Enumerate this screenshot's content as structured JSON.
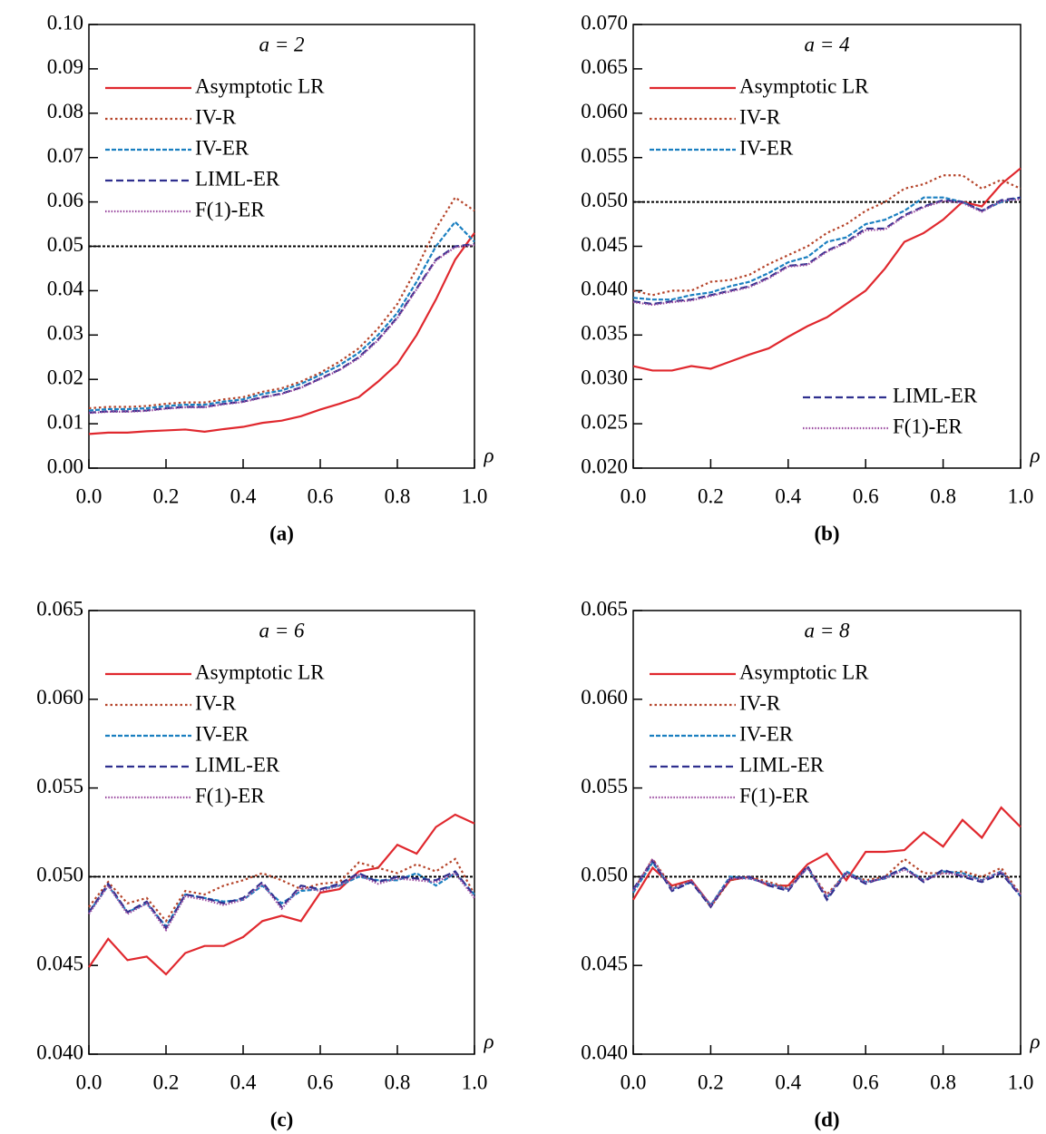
{
  "chart_data": [
    {
      "type": "line",
      "subtitle": "a = 2",
      "caption": "(a)",
      "xlabel": "ρ",
      "x": [
        0,
        0.05,
        0.1,
        0.15,
        0.2,
        0.25,
        0.3,
        0.35,
        0.4,
        0.45,
        0.5,
        0.55,
        0.6,
        0.65,
        0.7,
        0.75,
        0.8,
        0.85,
        0.9,
        0.95,
        1
      ],
      "xlim": [
        0,
        1
      ],
      "xticks": [
        {
          "value": 0,
          "label": "0.0"
        },
        0.2,
        0.4,
        0.6,
        0.8,
        {
          "value": 1,
          "label": "1.0"
        }
      ],
      "ylim": [
        0,
        0.1
      ],
      "yticks": [
        {
          "value": 0,
          "label": "0.00"
        },
        0.01,
        0.02,
        0.03,
        0.04,
        0.05,
        0.06,
        0.07,
        0.08,
        0.09,
        {
          "value": 0.1,
          "label": "0.10"
        }
      ],
      "reference_line": 0.05,
      "series": [
        {
          "name": "Asymptotic LR",
          "color": "#e0282e",
          "style": "solid",
          "legend": "upper left",
          "values": [
            0.0077,
            0.008,
            0.008,
            0.0083,
            0.0085,
            0.0087,
            0.0082,
            0.0088,
            0.0093,
            0.0102,
            0.0107,
            0.0117,
            0.0132,
            0.0145,
            0.016,
            0.0195,
            0.0235,
            0.03,
            0.038,
            0.047,
            0.053
          ]
        },
        {
          "name": "IV-R",
          "color": "#b5442a",
          "style": "dotted",
          "legend": "upper left",
          "values": [
            0.0135,
            0.0138,
            0.0138,
            0.014,
            0.0145,
            0.0148,
            0.0148,
            0.0155,
            0.016,
            0.0172,
            0.018,
            0.0195,
            0.0215,
            0.024,
            0.027,
            0.0315,
            0.037,
            0.045,
            0.054,
            0.061,
            0.058
          ]
        },
        {
          "name": "IV-ER",
          "color": "#1a7fc0",
          "style": "densely-dashed",
          "legend": "upper left",
          "values": [
            0.013,
            0.0133,
            0.0133,
            0.0135,
            0.014,
            0.0143,
            0.0143,
            0.015,
            0.0155,
            0.0167,
            0.0175,
            0.019,
            0.021,
            0.0232,
            0.026,
            0.03,
            0.035,
            0.042,
            0.05,
            0.0555,
            0.051
          ]
        },
        {
          "name": "LIML-ER",
          "color": "#2e2f8e",
          "style": "dashed",
          "legend": "upper left",
          "values": [
            0.0125,
            0.0128,
            0.0128,
            0.013,
            0.0135,
            0.0138,
            0.0138,
            0.0145,
            0.015,
            0.016,
            0.0168,
            0.0182,
            0.0202,
            0.0222,
            0.025,
            0.029,
            0.034,
            0.0405,
            0.047,
            0.05,
            0.0505
          ]
        },
        {
          "name": "F(1)-ER",
          "color": "#9b4ba0",
          "style": "fine-dotted",
          "legend": "upper left",
          "values": [
            0.0124,
            0.0127,
            0.0127,
            0.0129,
            0.0134,
            0.0137,
            0.0137,
            0.0144,
            0.0149,
            0.0159,
            0.0167,
            0.0181,
            0.0201,
            0.0221,
            0.0248,
            0.0288,
            0.0338,
            0.0403,
            0.0468,
            0.0498,
            0.0503
          ]
        }
      ]
    },
    {
      "type": "line",
      "subtitle": "a = 4",
      "caption": "(b)",
      "xlabel": "ρ",
      "x": [
        0,
        0.05,
        0.1,
        0.15,
        0.2,
        0.25,
        0.3,
        0.35,
        0.4,
        0.45,
        0.5,
        0.55,
        0.6,
        0.65,
        0.7,
        0.75,
        0.8,
        0.85,
        0.9,
        0.95,
        1
      ],
      "xlim": [
        0,
        1
      ],
      "xticks": [
        {
          "value": 0,
          "label": "0.0"
        },
        0.2,
        0.4,
        0.6,
        0.8,
        {
          "value": 1,
          "label": "1.0"
        }
      ],
      "ylim": [
        0.02,
        0.07
      ],
      "yticks": [
        {
          "value": 0.02,
          "label": "0.020"
        },
        0.025,
        {
          "value": 0.03,
          "label": "0.030"
        },
        0.035,
        {
          "value": 0.04,
          "label": "0.040"
        },
        0.045,
        {
          "value": 0.05,
          "label": "0.050"
        },
        0.055,
        {
          "value": 0.06,
          "label": "0.060"
        },
        0.065,
        {
          "value": 0.07,
          "label": "0.070"
        }
      ],
      "reference_line": 0.05,
      "series": [
        {
          "name": "Asymptotic LR",
          "color": "#e0282e",
          "style": "solid",
          "legend": "upper left",
          "values": [
            0.0315,
            0.031,
            0.031,
            0.0315,
            0.0312,
            0.032,
            0.0328,
            0.0335,
            0.0348,
            0.036,
            0.037,
            0.0385,
            0.04,
            0.0425,
            0.0455,
            0.0465,
            0.048,
            0.05,
            0.0495,
            0.052,
            0.0538
          ]
        },
        {
          "name": "IV-R",
          "color": "#b5442a",
          "style": "dotted",
          "legend": "upper left",
          "values": [
            0.04,
            0.0395,
            0.04,
            0.04,
            0.041,
            0.0412,
            0.0418,
            0.043,
            0.044,
            0.045,
            0.0465,
            0.0475,
            0.049,
            0.05,
            0.0515,
            0.052,
            0.053,
            0.053,
            0.0515,
            0.0525,
            0.0515
          ]
        },
        {
          "name": "IV-ER",
          "color": "#1a7fc0",
          "style": "densely-dashed",
          "legend": "upper left",
          "values": [
            0.0392,
            0.039,
            0.039,
            0.0395,
            0.0398,
            0.0405,
            0.041,
            0.042,
            0.0432,
            0.0438,
            0.0455,
            0.046,
            0.0475,
            0.048,
            0.049,
            0.0505,
            0.0505,
            0.05,
            0.049,
            0.05,
            0.0505
          ]
        },
        {
          "name": "LIML-ER",
          "color": "#2e2f8e",
          "style": "dashed",
          "legend": "lower right",
          "values": [
            0.0388,
            0.0385,
            0.0388,
            0.039,
            0.0395,
            0.04,
            0.0405,
            0.0415,
            0.0428,
            0.043,
            0.0445,
            0.0455,
            0.047,
            0.047,
            0.0485,
            0.0495,
            0.0502,
            0.05,
            0.049,
            0.0502,
            0.0505
          ]
        },
        {
          "name": "F(1)-ER",
          "color": "#9b4ba0",
          "style": "fine-dotted",
          "legend": "lower right",
          "values": [
            0.0387,
            0.0384,
            0.0387,
            0.0389,
            0.0394,
            0.0399,
            0.0404,
            0.0414,
            0.0427,
            0.0429,
            0.0444,
            0.0454,
            0.0468,
            0.0469,
            0.0484,
            0.0494,
            0.0501,
            0.0499,
            0.0489,
            0.0501,
            0.0503
          ]
        }
      ]
    },
    {
      "type": "line",
      "subtitle": "a = 6",
      "caption": "(c)",
      "xlabel": "ρ",
      "x": [
        0,
        0.05,
        0.1,
        0.15,
        0.2,
        0.25,
        0.3,
        0.35,
        0.4,
        0.45,
        0.5,
        0.55,
        0.6,
        0.65,
        0.7,
        0.75,
        0.8,
        0.85,
        0.9,
        0.95,
        1
      ],
      "xlim": [
        0,
        1
      ],
      "xticks": [
        {
          "value": 0,
          "label": "0.0"
        },
        0.2,
        0.4,
        0.6,
        0.8,
        {
          "value": 1,
          "label": "1.0"
        }
      ],
      "ylim": [
        0.04,
        0.065
      ],
      "yticks": [
        {
          "value": 0.04,
          "label": "0.040"
        },
        0.045,
        {
          "value": 0.05,
          "label": "0.050"
        },
        0.055,
        {
          "value": 0.06,
          "label": "0.060"
        },
        0.065
      ],
      "reference_line": 0.05,
      "series": [
        {
          "name": "Asymptotic LR",
          "color": "#e0282e",
          "style": "solid",
          "legend": "upper left",
          "values": [
            0.0449,
            0.0465,
            0.0453,
            0.0455,
            0.0445,
            0.0457,
            0.0461,
            0.0461,
            0.0466,
            0.0475,
            0.0478,
            0.0475,
            0.0491,
            0.0493,
            0.0503,
            0.0505,
            0.0518,
            0.0513,
            0.0528,
            0.0535,
            0.053
          ]
        },
        {
          "name": "IV-R",
          "color": "#b5442a",
          "style": "dotted",
          "legend": "upper left",
          "values": [
            0.0483,
            0.0497,
            0.0485,
            0.0488,
            0.0475,
            0.0492,
            0.049,
            0.0495,
            0.0498,
            0.0502,
            0.0498,
            0.0493,
            0.0496,
            0.0497,
            0.0508,
            0.0505,
            0.0502,
            0.0507,
            0.0503,
            0.051,
            0.049
          ]
        },
        {
          "name": "IV-ER",
          "color": "#1a7fc0",
          "style": "densely-dashed",
          "legend": "upper left",
          "values": [
            0.048,
            0.0495,
            0.048,
            0.0485,
            0.0472,
            0.049,
            0.0488,
            0.0486,
            0.0487,
            0.0495,
            0.0485,
            0.0492,
            0.0493,
            0.0495,
            0.05,
            0.0498,
            0.0498,
            0.0502,
            0.0495,
            0.0502,
            0.049
          ]
        },
        {
          "name": "LIML-ER",
          "color": "#2e2f8e",
          "style": "dashed",
          "legend": "upper left",
          "values": [
            0.048,
            0.0496,
            0.048,
            0.0486,
            0.0471,
            0.049,
            0.0488,
            0.0485,
            0.0488,
            0.0497,
            0.0483,
            0.0495,
            0.0493,
            0.0496,
            0.0502,
            0.0497,
            0.05,
            0.0499,
            0.0498,
            0.0503,
            0.0489
          ]
        },
        {
          "name": "F(1)-ER",
          "color": "#9b4ba0",
          "style": "fine-dotted",
          "legend": "upper left",
          "values": [
            0.0479,
            0.0495,
            0.0479,
            0.0485,
            0.047,
            0.0489,
            0.0487,
            0.0484,
            0.0487,
            0.0496,
            0.0482,
            0.0494,
            0.0492,
            0.0495,
            0.0501,
            0.0496,
            0.0499,
            0.0498,
            0.0497,
            0.0502,
            0.0488
          ]
        }
      ]
    },
    {
      "type": "line",
      "subtitle": "a = 8",
      "caption": "(d)",
      "xlabel": "ρ",
      "x": [
        0,
        0.05,
        0.1,
        0.15,
        0.2,
        0.25,
        0.3,
        0.35,
        0.4,
        0.45,
        0.5,
        0.55,
        0.6,
        0.65,
        0.7,
        0.75,
        0.8,
        0.85,
        0.9,
        0.95,
        1
      ],
      "xlim": [
        0,
        1
      ],
      "xticks": [
        {
          "value": 0,
          "label": "0.0"
        },
        0.2,
        0.4,
        0.6,
        0.8,
        {
          "value": 1,
          "label": "1.0"
        }
      ],
      "ylim": [
        0.04,
        0.065
      ],
      "yticks": [
        {
          "value": 0.04,
          "label": "0.040"
        },
        0.045,
        {
          "value": 0.05,
          "label": "0.050"
        },
        0.055,
        {
          "value": 0.06,
          "label": "0.060"
        },
        0.065
      ],
      "reference_line": 0.05,
      "series": [
        {
          "name": "Asymptotic LR",
          "color": "#e0282e",
          "style": "solid",
          "legend": "upper left",
          "values": [
            0.0487,
            0.0505,
            0.0495,
            0.0498,
            0.0484,
            0.0498,
            0.05,
            0.0495,
            0.0495,
            0.0507,
            0.0513,
            0.0498,
            0.0514,
            0.0514,
            0.0515,
            0.0525,
            0.0517,
            0.0532,
            0.0522,
            0.0539,
            0.0528
          ]
        },
        {
          "name": "IV-R",
          "color": "#b5442a",
          "style": "dotted",
          "legend": "upper left",
          "values": [
            0.0492,
            0.051,
            0.0494,
            0.0498,
            0.0483,
            0.0498,
            0.05,
            0.0497,
            0.0494,
            0.0505,
            0.049,
            0.0502,
            0.0498,
            0.05,
            0.051,
            0.0502,
            0.0502,
            0.0503,
            0.05,
            0.0505,
            0.049
          ]
        },
        {
          "name": "IV-ER",
          "color": "#1a7fc0",
          "style": "densely-dashed",
          "legend": "upper left",
          "values": [
            0.0491,
            0.0508,
            0.0493,
            0.0497,
            0.0484,
            0.05,
            0.0499,
            0.0496,
            0.0493,
            0.0505,
            0.0488,
            0.0503,
            0.0497,
            0.0499,
            0.0505,
            0.0498,
            0.0503,
            0.0502,
            0.0498,
            0.0503,
            0.0489
          ]
        },
        {
          "name": "LIML-ER",
          "color": "#2e2f8e",
          "style": "dashed",
          "legend": "upper left",
          "values": [
            0.0493,
            0.0509,
            0.0492,
            0.0497,
            0.0483,
            0.0499,
            0.05,
            0.0495,
            0.0492,
            0.0506,
            0.0487,
            0.0502,
            0.0496,
            0.05,
            0.0505,
            0.0497,
            0.0504,
            0.05,
            0.0497,
            0.0502,
            0.0489
          ]
        },
        {
          "name": "F(1)-ER",
          "color": "#9b4ba0",
          "style": "fine-dotted",
          "legend": "upper left",
          "values": [
            0.0492,
            0.051,
            0.0493,
            0.0498,
            0.0484,
            0.0499,
            0.0499,
            0.0496,
            0.0493,
            0.0505,
            0.0489,
            0.0502,
            0.0497,
            0.0499,
            0.0504,
            0.0498,
            0.0502,
            0.0501,
            0.0498,
            0.0503,
            0.049
          ]
        }
      ]
    }
  ]
}
